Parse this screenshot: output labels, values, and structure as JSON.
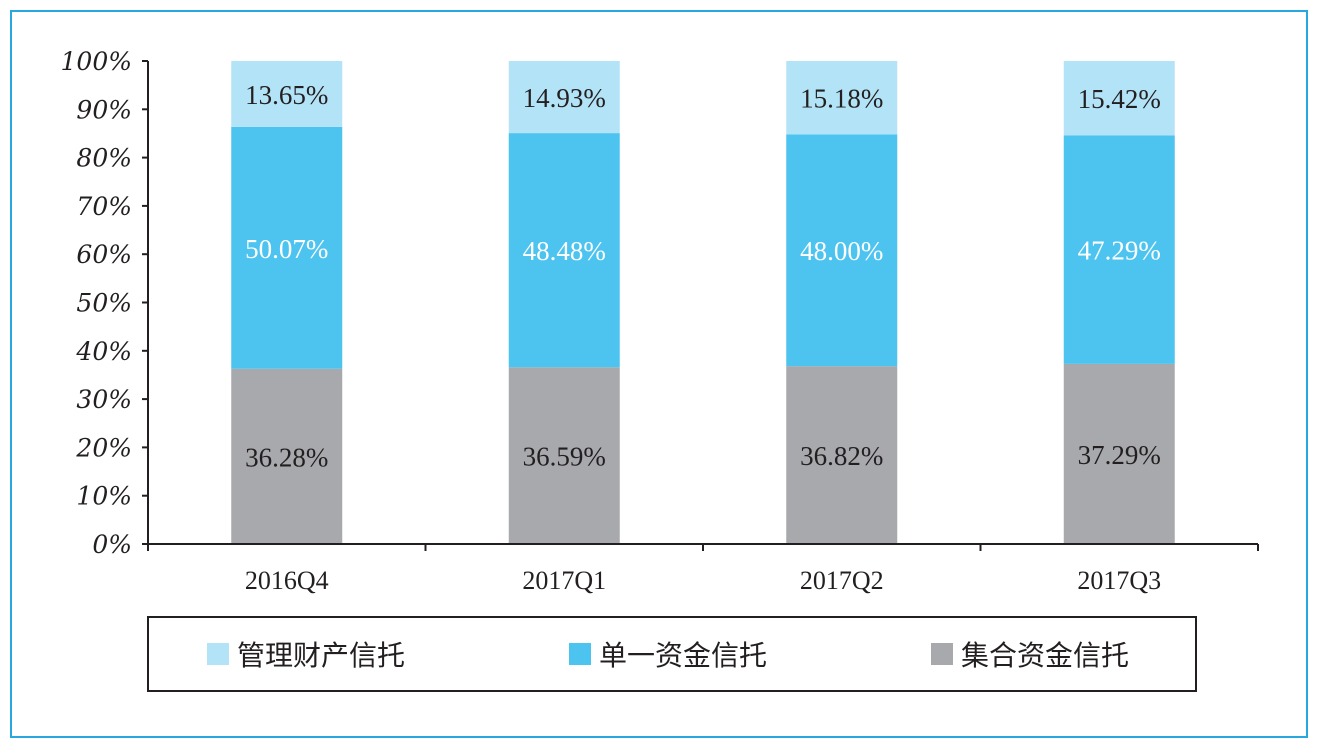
{
  "chart_data": {
    "type": "bar",
    "stacked": true,
    "categories": [
      "2016Q4",
      "2017Q1",
      "2017Q2",
      "2017Q3"
    ],
    "series": [
      {
        "name": "集合资金信托",
        "color": "#a7a9ac",
        "values": [
          36.28,
          36.59,
          36.82,
          37.29
        ],
        "labels": [
          "36.28%",
          "36.59%",
          "36.82%",
          "37.29%"
        ],
        "label_color": "#231f20"
      },
      {
        "name": "单一资金信托",
        "color": "#4dc4f0",
        "values": [
          50.07,
          48.48,
          48.0,
          47.29
        ],
        "labels": [
          "50.07%",
          "48.48%",
          "48.00%",
          "47.29%"
        ],
        "label_color": "#ffffff"
      },
      {
        "name": "管理财产信托",
        "color": "#b3e3f7",
        "values": [
          13.65,
          14.93,
          15.18,
          15.42
        ],
        "labels": [
          "13.65%",
          "14.93%",
          "15.18%",
          "15.42%"
        ],
        "label_color": "#231f20"
      }
    ],
    "ylim": [
      0,
      100
    ],
    "y_ticks": [
      "0%",
      "10%",
      "20%",
      "30%",
      "40%",
      "50%",
      "60%",
      "70%",
      "80%",
      "90%",
      "100%"
    ],
    "grid": false,
    "legend_position": "bottom",
    "legend_order": [
      "管理财产信托",
      "单一资金信托",
      "集合资金信托"
    ]
  }
}
